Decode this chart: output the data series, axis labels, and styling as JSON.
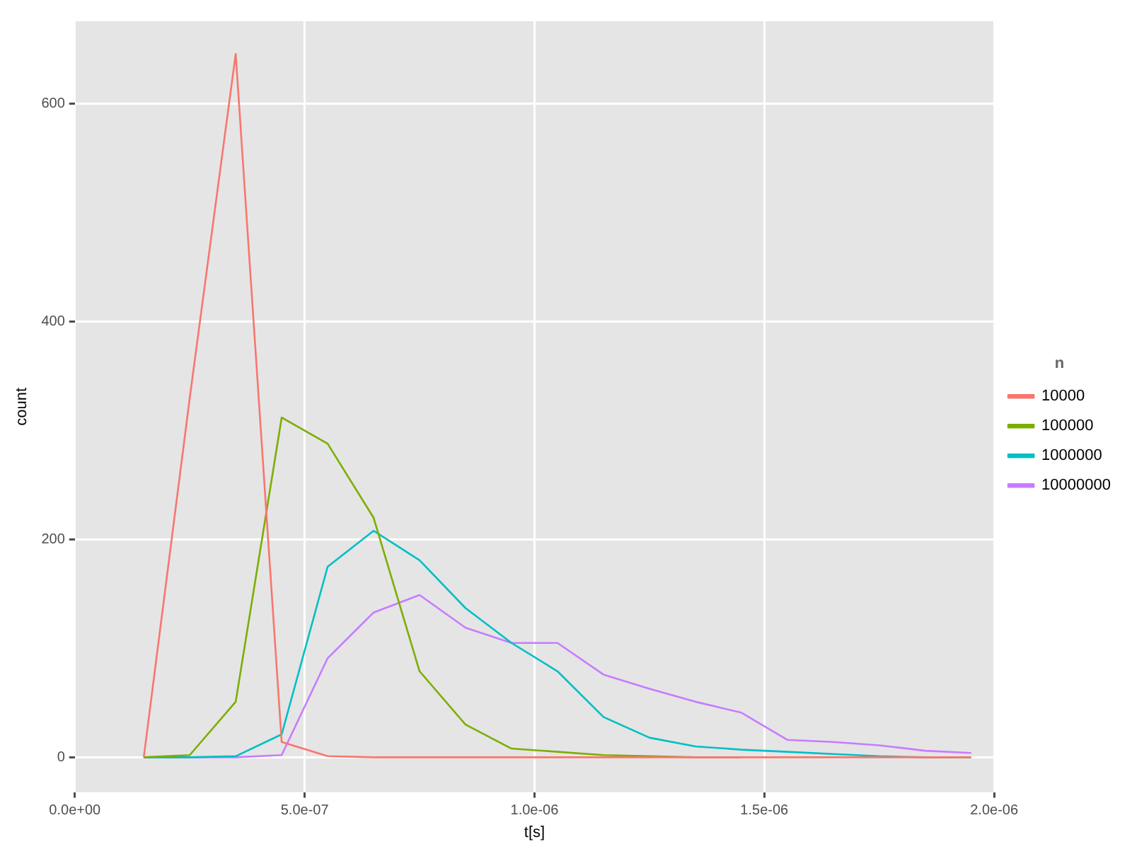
{
  "chart_data": {
    "type": "line",
    "xlabel": "t[s]",
    "ylabel": "count",
    "legend_title": "n",
    "legend": "right",
    "grid": true,
    "x": [
      1.5e-07,
      2.5e-07,
      3.5e-07,
      4.5e-07,
      5.5e-07,
      6.5e-07,
      7.5e-07,
      8.5e-07,
      9.5e-07,
      1.05e-06,
      1.15e-06,
      1.25e-06,
      1.35e-06,
      1.45e-06,
      1.55e-06,
      1.65e-06,
      1.75e-06,
      1.85e-06,
      1.95e-06
    ],
    "xlim": [
      0,
      2e-06
    ],
    "xticks": [
      {
        "value": 0,
        "label": "0.0e+00"
      },
      {
        "value": 5e-07,
        "label": "5.0e-07"
      },
      {
        "value": 1e-06,
        "label": "1.0e-06"
      },
      {
        "value": 1.5e-06,
        "label": "1.5e-06"
      },
      {
        "value": 2e-06,
        "label": "2.0e-06"
      }
    ],
    "ylim": [
      -32,
      676
    ],
    "yticks": [
      0,
      200,
      400,
      600
    ],
    "series": [
      {
        "name": "10000",
        "color": "#f8766d",
        "values": [
          0,
          330,
          646,
          14,
          1,
          0,
          0,
          0,
          0,
          0,
          0,
          0,
          0,
          0,
          0,
          0,
          0,
          0,
          0
        ]
      },
      {
        "name": "100000",
        "color": "#7cae00",
        "values": [
          0,
          2,
          51,
          312,
          288,
          220,
          79,
          30,
          8,
          5,
          2,
          1,
          0,
          0,
          null,
          null,
          null,
          null,
          null
        ]
      },
      {
        "name": "1000000",
        "color": "#00bfc4",
        "values": [
          0,
          0,
          1,
          21,
          175,
          208,
          181,
          137,
          105,
          79,
          37,
          18,
          10,
          7,
          5,
          3,
          1,
          0,
          0
        ]
      },
      {
        "name": "10000000",
        "color": "#c77cff",
        "values": [
          0,
          0,
          0,
          2,
          91,
          133,
          149,
          119,
          105,
          105,
          76,
          63,
          51,
          41,
          16,
          14,
          11,
          6,
          4
        ]
      }
    ]
  }
}
